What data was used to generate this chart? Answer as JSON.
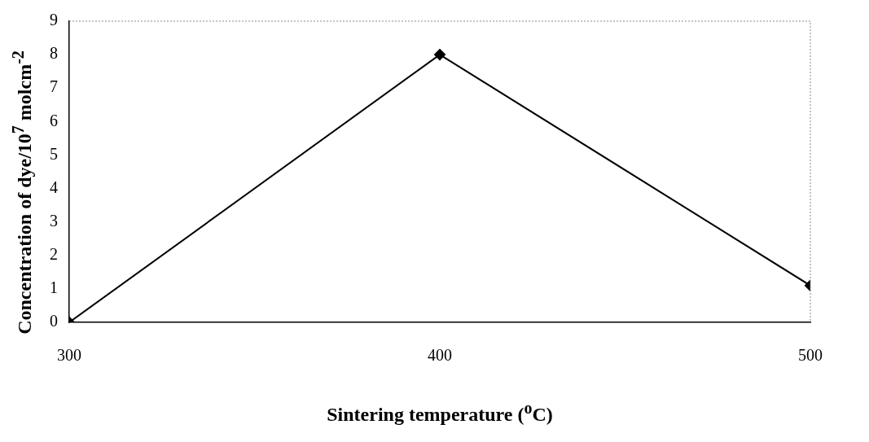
{
  "chart_data": {
    "type": "line",
    "xlabel": "Sintering temperature ($^{o}$C)",
    "ylabel": "Concentration of dye/10$^{7}$ molcm$^{-2}$",
    "x": [
      300,
      400,
      500
    ],
    "series": [
      {
        "color": "#000000",
        "values": [
          0,
          8.0,
          1.1
        ]
      }
    ],
    "xlim": [
      300,
      500
    ],
    "xticks": [
      300,
      400,
      500
    ],
    "ylim": [
      0,
      9
    ],
    "yticks": [
      0,
      1,
      2,
      3,
      4,
      5,
      6,
      7,
      8,
      9
    ],
    "grid": false,
    "legend": false,
    "marker": "diamond",
    "line_style": "solid"
  }
}
